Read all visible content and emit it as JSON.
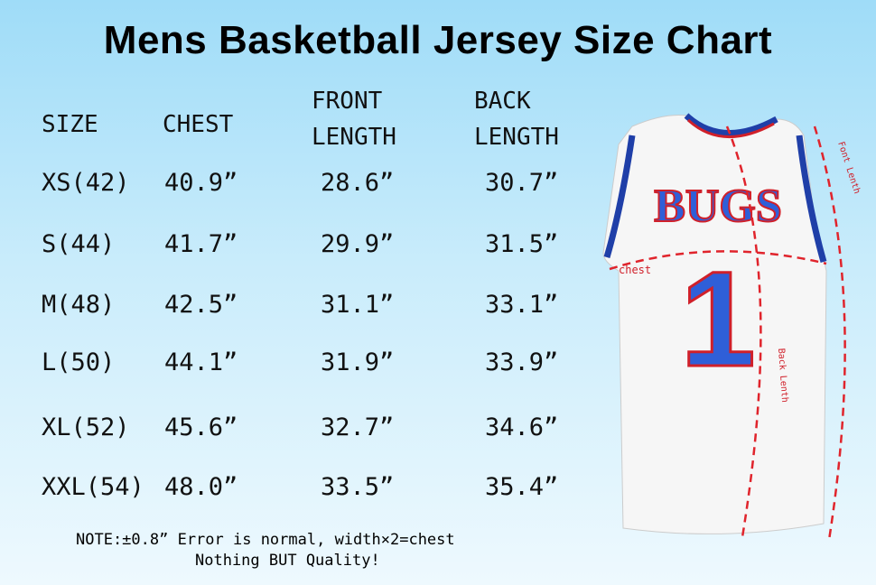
{
  "header": {
    "title": "Mens Basketball Jersey Size Chart"
  },
  "table": {
    "columns": [
      "SIZE",
      "CHEST",
      "FRONT\nLENGTH",
      "BACK\nLENGTH"
    ],
    "rows": [
      [
        "XS(42)",
        "40.9”",
        "28.6”",
        "30.7”"
      ],
      [
        "S(44)",
        "41.7”",
        "29.9”",
        "31.5”"
      ],
      [
        "M(48)",
        "42.5”",
        "31.1”",
        "33.1”"
      ],
      [
        "L(50)",
        "44.1”",
        "31.9”",
        "33.9”"
      ],
      [
        "XL(52)",
        "45.6”",
        "32.7”",
        "34.6”"
      ],
      [
        "XXL(54)",
        "48.0”",
        "33.5”",
        "35.4”"
      ]
    ]
  },
  "note": [
    "NOTE:±0.8” Error is normal, width×2=chest",
    "Nothing BUT Quality!"
  ],
  "jersey": {
    "name": "BUGS",
    "number": "1",
    "labels": {
      "chest": "chest",
      "front": "Font Lenth",
      "back": "Back Lenth"
    }
  }
}
